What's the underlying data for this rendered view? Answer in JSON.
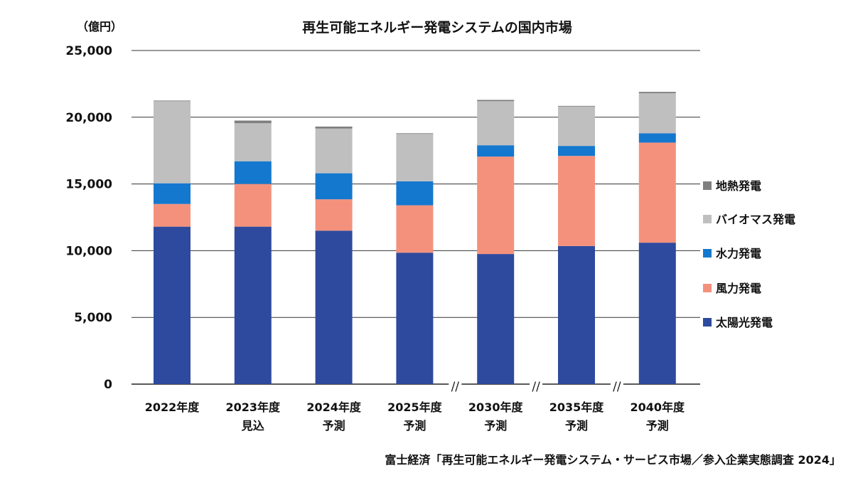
{
  "chart_data": {
    "type": "bar",
    "stacked": true,
    "title": "再生可能エネルギー発電システムの国内市場",
    "ylabel": "（億円）",
    "xlabel": "",
    "ylim": [
      0,
      25000
    ],
    "yticks": [
      0,
      5000,
      10000,
      15000,
      20000,
      25000
    ],
    "ytick_labels": [
      "0",
      "5,000",
      "10,000",
      "15,000",
      "20,000",
      "25,000"
    ],
    "grid": true,
    "legend_position": "right",
    "categories": [
      {
        "line1": "2022年度",
        "line2": ""
      },
      {
        "line1": "2023年度",
        "line2": "見込"
      },
      {
        "line1": "2024年度",
        "line2": "予測"
      },
      {
        "line1": "2025年度",
        "line2": "予測"
      },
      {
        "line1": "2030年度",
        "line2": "予測"
      },
      {
        "line1": "2035年度",
        "line2": "予測"
      },
      {
        "line1": "2040年度",
        "line2": "予測"
      }
    ],
    "axis_breaks": [
      "//",
      "//",
      "//"
    ],
    "series": [
      {
        "name": "太陽光発電",
        "color": "#2E4A9E",
        "values": [
          11800,
          11800,
          11500,
          9850,
          9750,
          10350,
          10600
        ]
      },
      {
        "name": "風力発電",
        "color": "#F4917C",
        "values": [
          1700,
          3200,
          2350,
          3550,
          7300,
          6750,
          7500
        ]
      },
      {
        "name": "水力発電",
        "color": "#1478CF",
        "values": [
          1550,
          1700,
          1950,
          1800,
          850,
          750,
          700
        ]
      },
      {
        "name": "バイオマス発電",
        "color": "#BFBFBF",
        "values": [
          6150,
          2850,
          3350,
          3550,
          3300,
          2950,
          3000
        ]
      },
      {
        "name": "地熱発電",
        "color": "#7F7F7F",
        "values": [
          50,
          200,
          150,
          50,
          100,
          50,
          100
        ]
      }
    ],
    "source": "富士経済「再生可能エネルギー発電システム・サービス市場／参入企業実態調査 2024」"
  }
}
